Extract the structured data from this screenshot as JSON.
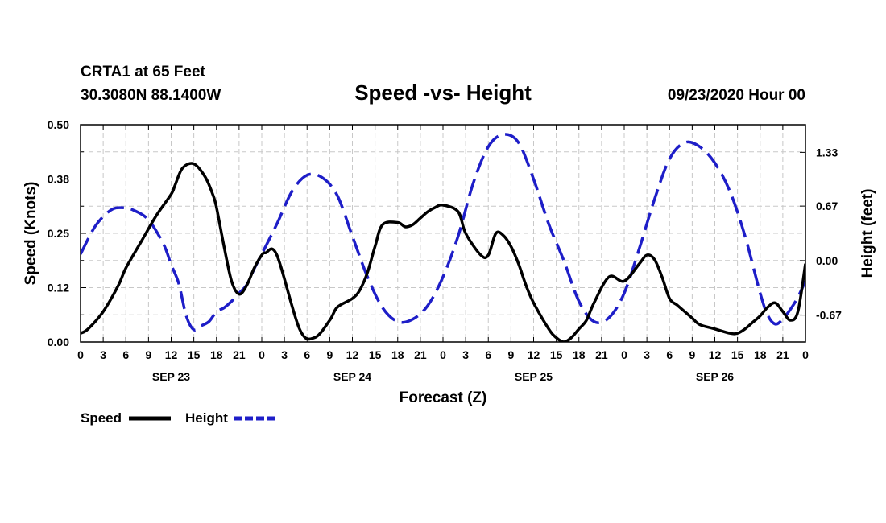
{
  "header": {
    "station": "CRTA1 at 65 Feet",
    "coords": "30.3080N 88.1400W",
    "title": "Speed -vs- Height",
    "datetime": "09/23/2020 Hour 00"
  },
  "chart_data": {
    "type": "line",
    "title": "Speed -vs- Height",
    "xlabel": "Forecast (Z)",
    "ylabel": "Speed (Knots)",
    "y2label": "Height (feet)",
    "xlim": [
      0,
      96
    ],
    "ylim": [
      0,
      0.5
    ],
    "y2lim": [
      -1.0,
      1.67
    ],
    "x_tick_values": [
      0,
      3,
      6,
      9,
      12,
      15,
      18,
      21,
      24,
      27,
      30,
      33,
      36,
      39,
      42,
      45,
      48,
      51,
      54,
      57,
      60,
      63,
      66,
      69,
      72,
      75,
      78,
      81,
      84,
      87,
      90,
      93,
      96
    ],
    "x_tick_labels": [
      "0",
      "3",
      "6",
      "9",
      "12",
      "15",
      "18",
      "21",
      "0",
      "3",
      "6",
      "9",
      "12",
      "15",
      "18",
      "21",
      "0",
      "3",
      "6",
      "9",
      "12",
      "15",
      "18",
      "21",
      "0",
      "3",
      "6",
      "9",
      "12",
      "15",
      "18",
      "21",
      "0"
    ],
    "day_labels": [
      {
        "x": 12,
        "label": "SEP 23"
      },
      {
        "x": 36,
        "label": "SEP 24"
      },
      {
        "x": 60,
        "label": "SEP 25"
      },
      {
        "x": 84,
        "label": "SEP 26"
      }
    ],
    "y_ticks": [
      {
        "v": 0.0,
        "label": "0.00"
      },
      {
        "v": 0.125,
        "label": "0.12"
      },
      {
        "v": 0.25,
        "label": "0.25"
      },
      {
        "v": 0.375,
        "label": "0.38"
      },
      {
        "v": 0.5,
        "label": "0.50"
      }
    ],
    "y2_ticks": [
      {
        "v": -0.67,
        "label": "-0.67"
      },
      {
        "v": 0.0,
        "label": "0.00"
      },
      {
        "v": 0.67,
        "label": "0.67"
      },
      {
        "v": 1.33,
        "label": "1.33"
      }
    ],
    "series": [
      {
        "name": "Speed",
        "axis": "left",
        "color": "#000000",
        "style": "solid",
        "x": [
          0,
          1,
          3,
          5,
          6,
          8,
          10,
          12,
          12.5,
          13.5,
          15,
          16.5,
          17.5,
          18,
          19,
          20,
          21,
          22,
          23,
          24,
          24.5,
          26,
          29,
          31,
          33,
          34,
          36,
          37,
          38,
          39,
          40,
          42,
          43,
          44,
          45,
          46,
          47,
          48,
          50,
          51,
          53,
          54,
          55,
          56,
          57,
          58,
          59,
          60,
          62,
          63,
          64,
          65,
          66,
          67,
          68,
          70,
          72,
          74,
          75,
          76,
          77,
          78,
          79,
          80,
          81,
          82,
          84,
          86,
          87,
          88,
          89,
          90,
          91,
          92,
          93,
          94,
          95,
          96
        ],
        "y": [
          0.02,
          0.03,
          0.07,
          0.13,
          0.17,
          0.23,
          0.29,
          0.34,
          0.36,
          0.4,
          0.41,
          0.38,
          0.34,
          0.31,
          0.22,
          0.14,
          0.11,
          0.13,
          0.17,
          0.2,
          0.205,
          0.2,
          0.03,
          0.01,
          0.05,
          0.08,
          0.1,
          0.12,
          0.16,
          0.22,
          0.27,
          0.275,
          0.265,
          0.27,
          0.285,
          0.3,
          0.31,
          0.315,
          0.3,
          0.25,
          0.2,
          0.2,
          0.25,
          0.245,
          0.22,
          0.18,
          0.13,
          0.09,
          0.03,
          0.01,
          0.0,
          0.01,
          0.03,
          0.05,
          0.09,
          0.15,
          0.14,
          0.18,
          0.2,
          0.19,
          0.15,
          0.1,
          0.085,
          0.07,
          0.055,
          0.04,
          0.03,
          0.02,
          0.02,
          0.03,
          0.045,
          0.06,
          0.08,
          0.09,
          0.07,
          0.05,
          0.07,
          0.18
        ]
      },
      {
        "name": "Height",
        "axis": "right",
        "color": "#1e1ec8",
        "style": "dashed",
        "x": [
          0,
          2,
          4,
          5.5,
          7,
          9,
          11,
          12,
          13,
          14,
          15,
          16,
          17,
          18,
          19,
          20,
          21,
          22,
          23,
          24,
          26,
          28,
          30,
          32,
          34,
          36,
          38,
          40,
          42,
          44,
          46,
          48,
          50,
          52,
          54,
          56,
          58,
          60,
          62,
          64,
          66,
          68,
          70,
          72,
          74,
          76,
          78,
          80,
          82,
          84,
          86,
          88,
          90,
          91,
          92,
          93,
          94,
          95,
          96
        ],
        "y": [
          0.08,
          0.43,
          0.62,
          0.65,
          0.62,
          0.5,
          0.2,
          -0.05,
          -0.28,
          -0.68,
          -0.85,
          -0.8,
          -0.75,
          -0.63,
          -0.58,
          -0.5,
          -0.4,
          -0.3,
          -0.1,
          0.08,
          0.45,
          0.85,
          1.05,
          1.02,
          0.8,
          0.3,
          -0.2,
          -0.58,
          -0.75,
          -0.72,
          -0.55,
          -0.2,
          0.3,
          0.95,
          1.4,
          1.55,
          1.45,
          1.0,
          0.45,
          0.0,
          -0.5,
          -0.75,
          -0.7,
          -0.4,
          0.15,
          0.75,
          1.25,
          1.45,
          1.4,
          1.2,
          0.85,
          0.3,
          -0.4,
          -0.67,
          -0.78,
          -0.72,
          -0.6,
          -0.45,
          -0.25
        ]
      }
    ],
    "legend": [
      {
        "label": "Speed",
        "color": "#000000",
        "style": "solid"
      },
      {
        "label": "Height",
        "color": "#1e1ec8",
        "style": "dashed"
      }
    ],
    "legend_placement": "bottom-left",
    "grid": true
  }
}
